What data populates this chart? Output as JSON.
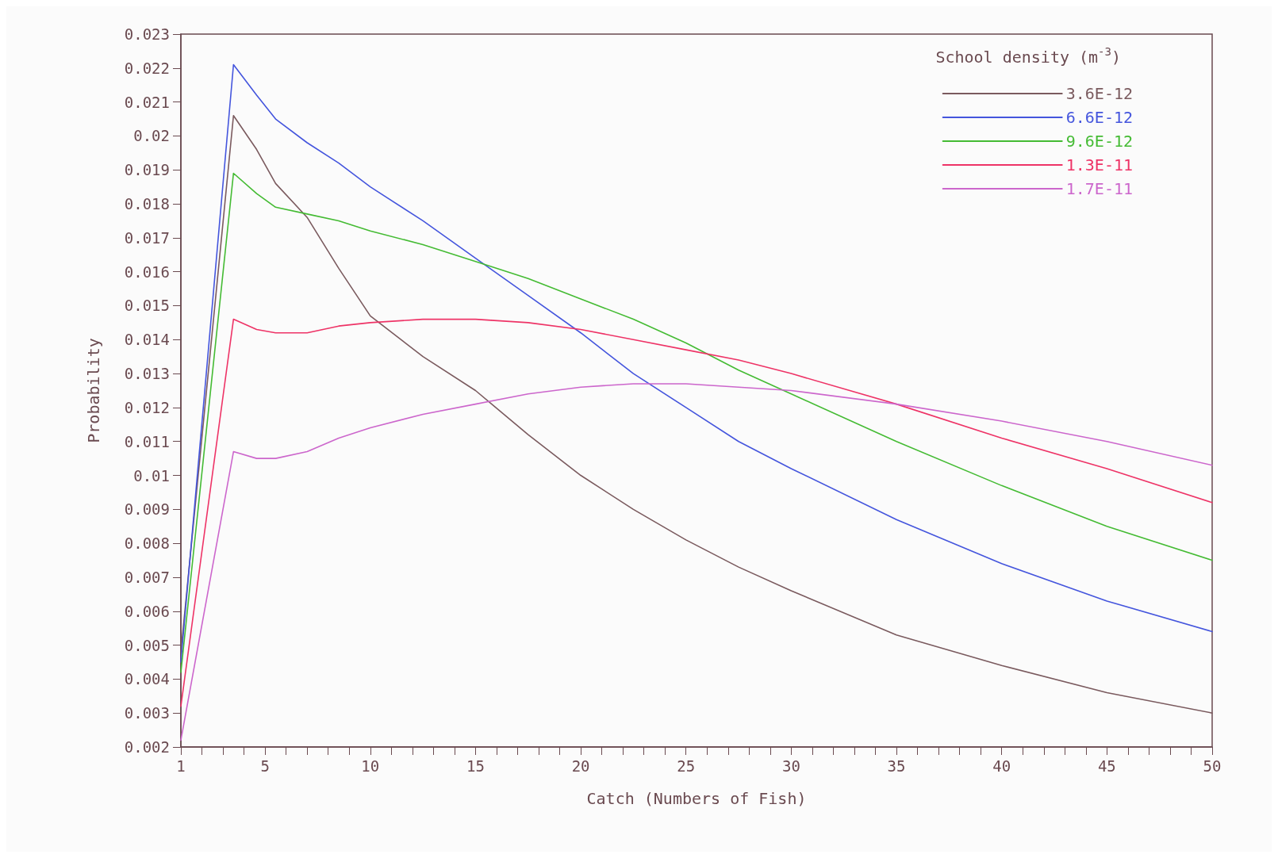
{
  "chart_data": {
    "type": "line",
    "xlabel": "Catch (Numbers of Fish)",
    "ylabel": "Probability",
    "legend_title": "School density (m$^{-3}$)",
    "x": [
      1,
      3.5,
      4.6,
      5.5,
      7,
      8.5,
      10,
      12.5,
      15,
      17.5,
      20,
      22.5,
      25,
      27.5,
      30,
      35,
      40,
      45,
      50
    ],
    "series": [
      {
        "name": "3.6E-12",
        "color": "#7a5a5e",
        "values": [
          0.0048,
          0.0206,
          0.0196,
          0.0186,
          0.0176,
          0.0161,
          0.0147,
          0.0135,
          0.0125,
          0.0112,
          0.01,
          0.009,
          0.0081,
          0.0073,
          0.0066,
          0.0053,
          0.0044,
          0.0036,
          0.003
        ]
      },
      {
        "name": "6.6E-12",
        "color": "#4455dd",
        "values": [
          0.0045,
          0.0221,
          0.0212,
          0.0205,
          0.0198,
          0.0192,
          0.0185,
          0.0175,
          0.0164,
          0.0153,
          0.0142,
          0.013,
          0.012,
          0.011,
          0.0102,
          0.0087,
          0.0074,
          0.0063,
          0.0054
        ]
      },
      {
        "name": "9.6E-12",
        "color": "#44bb33",
        "values": [
          0.0042,
          0.0189,
          0.0183,
          0.0179,
          0.0177,
          0.0175,
          0.0172,
          0.0168,
          0.0163,
          0.0158,
          0.0152,
          0.0146,
          0.0139,
          0.0131,
          0.0124,
          0.011,
          0.0097,
          0.0085,
          0.0075
        ]
      },
      {
        "name": "1.3E-11",
        "color": "#ee3366",
        "values": [
          0.0032,
          0.0146,
          0.0143,
          0.0142,
          0.0142,
          0.0144,
          0.0145,
          0.0146,
          0.0146,
          0.0145,
          0.0143,
          0.014,
          0.0137,
          0.0134,
          0.013,
          0.0121,
          0.0111,
          0.0102,
          0.0092
        ]
      },
      {
        "name": "1.7E-11",
        "color": "#cc66cc",
        "values": [
          0.0022,
          0.0107,
          0.0105,
          0.0105,
          0.0107,
          0.0111,
          0.0114,
          0.0118,
          0.0121,
          0.0124,
          0.0126,
          0.0127,
          0.0127,
          0.0126,
          0.0125,
          0.0121,
          0.0116,
          0.011,
          0.0103
        ]
      }
    ],
    "xlim": [
      1,
      50
    ],
    "xticks": [
      1,
      {
        "value": 2,
        "label": null
      },
      {
        "value": 3,
        "label": null
      },
      {
        "value": 4,
        "label": null
      },
      5,
      {
        "value": 6,
        "label": null
      },
      {
        "value": 7,
        "label": null
      },
      {
        "value": 8,
        "label": null
      },
      {
        "value": 9,
        "label": null
      },
      10,
      {
        "value": 11,
        "label": null
      },
      {
        "value": 12,
        "label": null
      },
      {
        "value": 13,
        "label": null
      },
      {
        "value": 14,
        "label": null
      },
      15,
      {
        "value": 16,
        "label": null
      },
      {
        "value": 17,
        "label": null
      },
      {
        "value": 18,
        "label": null
      },
      {
        "value": 19,
        "label": null
      },
      20,
      {
        "value": 21,
        "label": null
      },
      {
        "value": 22,
        "label": null
      },
      {
        "value": 23,
        "label": null
      },
      {
        "value": 24,
        "label": null
      },
      25,
      {
        "value": 26,
        "label": null
      },
      {
        "value": 27,
        "label": null
      },
      {
        "value": 28,
        "label": null
      },
      {
        "value": 29,
        "label": null
      },
      30,
      {
        "value": 31,
        "label": null
      },
      {
        "value": 32,
        "label": null
      },
      {
        "value": 33,
        "label": null
      },
      {
        "value": 34,
        "label": null
      },
      35,
      {
        "value": 36,
        "label": null
      },
      {
        "value": 37,
        "label": null
      },
      {
        "value": 38,
        "label": null
      },
      {
        "value": 39,
        "label": null
      },
      40,
      {
        "value": 41,
        "label": null
      },
      {
        "value": 42,
        "label": null
      },
      {
        "value": 43,
        "label": null
      },
      {
        "value": 44,
        "label": null
      },
      45,
      {
        "value": 46,
        "label": null
      },
      {
        "value": 47,
        "label": null
      },
      {
        "value": 48,
        "label": null
      },
      {
        "value": 49,
        "label": null
      },
      50
    ],
    "ylim": [
      0.002,
      0.023
    ],
    "yticks": [
      0.002,
      0.003,
      0.004,
      0.005,
      0.006,
      0.007,
      0.008,
      0.009,
      0.01,
      0.011,
      0.012,
      0.013,
      0.014,
      0.015,
      0.016,
      0.017,
      0.018,
      0.019,
      0.02,
      0.021,
      0.022,
      0.023
    ],
    "legend": "top right",
    "grid": false,
    "marker": "none",
    "line_style": "solid"
  }
}
